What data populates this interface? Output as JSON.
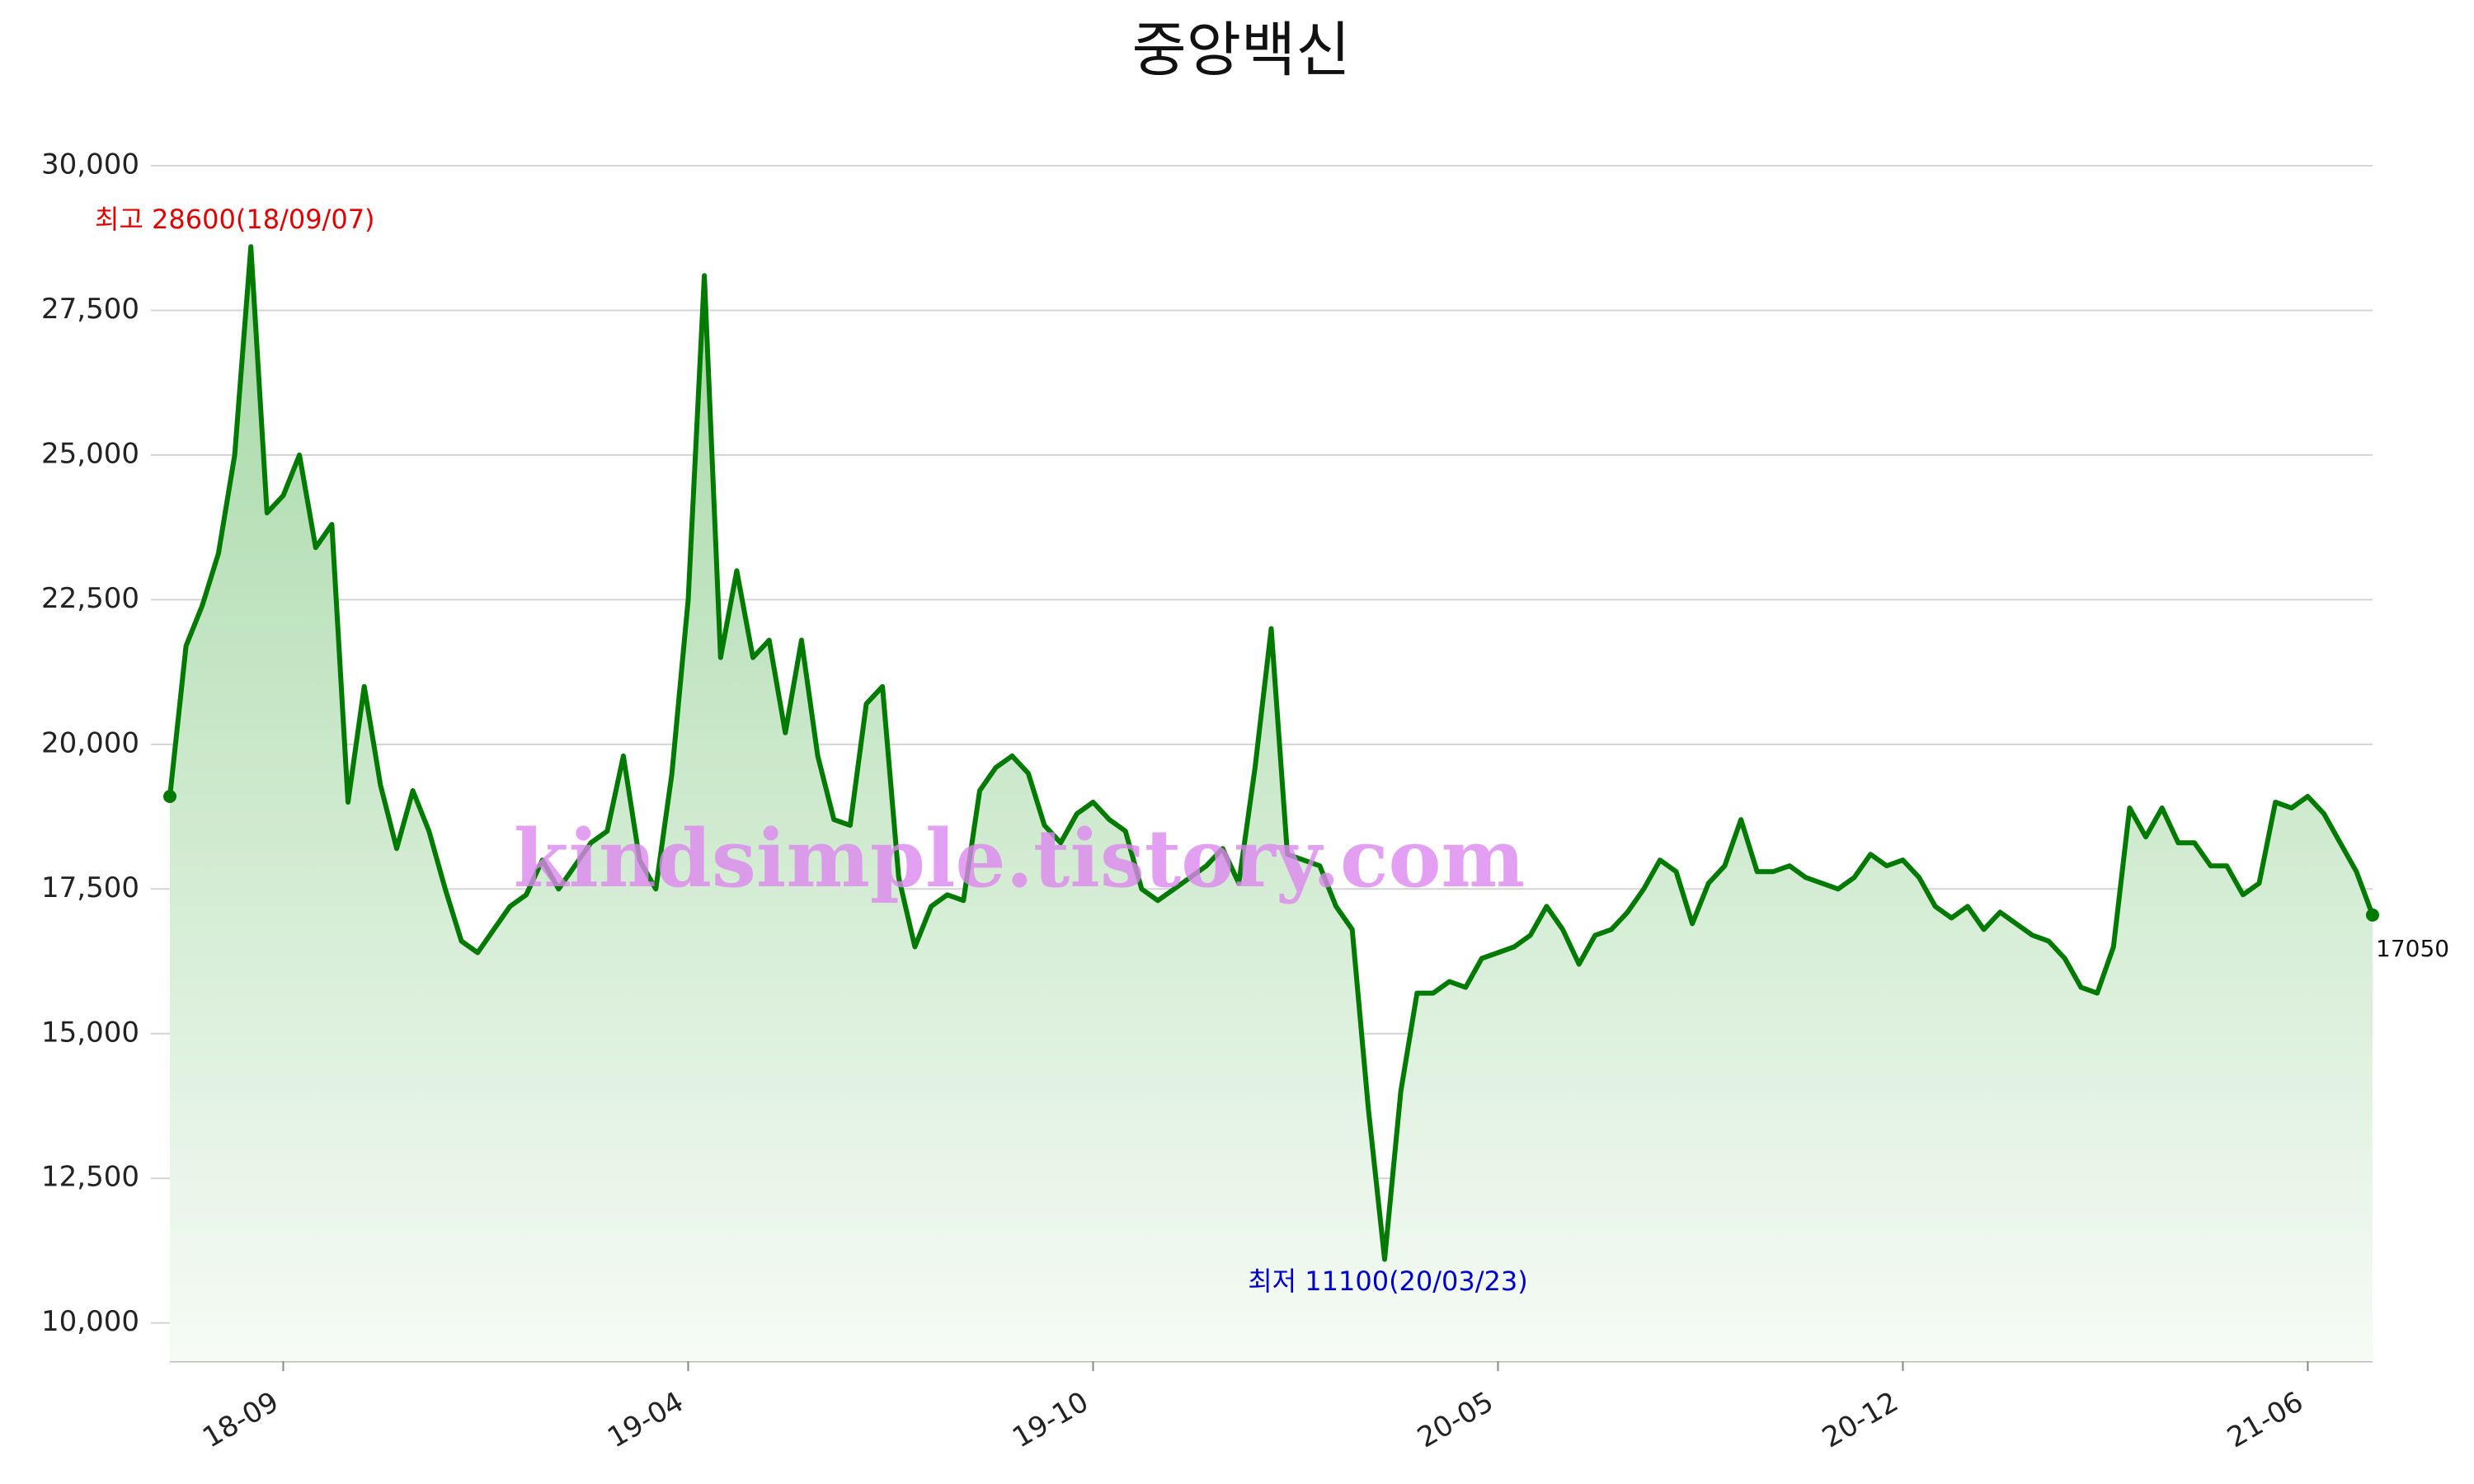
{
  "chart_data": {
    "type": "area-line",
    "title": "중앙백신",
    "watermark": "kindsimple.tistory.com",
    "color": "#007a00",
    "fill_top": "#a6d8a6",
    "fill_bottom": "#f6fbf6",
    "categories": [
      null,
      null,
      null,
      null,
      null,
      null,
      null,
      "18-09",
      null,
      null,
      null,
      null,
      null,
      null,
      null,
      null,
      null,
      null,
      null,
      null,
      null,
      null,
      null,
      null,
      null,
      null,
      null,
      null,
      null,
      null,
      null,
      null,
      "19-04",
      null,
      null,
      null,
      null,
      null,
      null,
      null,
      null,
      null,
      null,
      null,
      null,
      null,
      null,
      null,
      null,
      null,
      null,
      null,
      null,
      null,
      null,
      null,
      null,
      "19-10",
      null,
      null,
      null,
      null,
      null,
      null,
      null,
      null,
      null,
      null,
      null,
      null,
      null,
      null,
      null,
      null,
      null,
      null,
      null,
      null,
      null,
      null,
      null,
      null,
      "20-05",
      null,
      null,
      null,
      null,
      null,
      null,
      null,
      null,
      null,
      null,
      null,
      null,
      null,
      null,
      null,
      null,
      null,
      null,
      null,
      null,
      null,
      null,
      null,
      null,
      "20-12",
      null,
      null,
      null,
      null,
      null,
      null,
      null,
      null,
      null,
      null,
      null,
      null,
      null,
      null,
      null,
      null,
      null,
      null,
      null,
      null,
      null,
      null,
      null,
      null,
      "21-06",
      null,
      null,
      null,
      null
    ],
    "values": [
      19100,
      21700,
      22400,
      23300,
      25000,
      28600,
      24000,
      24300,
      25000,
      23400,
      23800,
      19000,
      21000,
      19300,
      18200,
      19200,
      18500,
      17500,
      16600,
      16400,
      16800,
      17200,
      17400,
      18000,
      17500,
      17900,
      18300,
      18500,
      19800,
      18000,
      17500,
      19500,
      22500,
      28100,
      21500,
      23000,
      21500,
      21800,
      20200,
      21800,
      19800,
      18700,
      18600,
      20700,
      21000,
      17700,
      16500,
      17200,
      17400,
      17300,
      19200,
      19600,
      19800,
      19500,
      18600,
      18300,
      18800,
      19000,
      18700,
      18500,
      17500,
      17300,
      17500,
      17700,
      17900,
      18200,
      17600,
      19600,
      22000,
      18100,
      18000,
      17900,
      17200,
      16800,
      13700,
      11100,
      14000,
      15700,
      15700,
      15900,
      15800,
      16300,
      16400,
      16500,
      16700,
      17200,
      16800,
      16200,
      16700,
      16800,
      17100,
      17500,
      18000,
      17800,
      16900,
      17600,
      17900,
      18700,
      17800,
      17800,
      17900,
      17700,
      17600,
      17500,
      17700,
      18100,
      17900,
      18000,
      17700,
      17200,
      17000,
      17200,
      16800,
      17100,
      16900,
      16700,
      16600,
      16300,
      15800,
      15700,
      16500,
      18900,
      18400,
      18900,
      18300,
      18300,
      17900,
      17900,
      17400,
      17600,
      19000,
      18900,
      19100,
      18800,
      18300,
      17800,
      17050
    ],
    "ylim": [
      9340,
      30000
    ],
    "yticks": [
      {
        "value": 10000,
        "label": "10,000"
      },
      {
        "value": 12500,
        "label": "12,500"
      },
      {
        "value": 15000,
        "label": "15,000"
      },
      {
        "value": 17500,
        "label": "17,500"
      },
      {
        "value": 20000,
        "label": "20,000"
      },
      {
        "value": 22500,
        "label": "22,500"
      },
      {
        "value": 25000,
        "label": "25,000"
      },
      {
        "value": 27500,
        "label": "27,500"
      },
      {
        "value": 30000,
        "label": "30,000"
      }
    ],
    "grid": true,
    "annotations": {
      "high": {
        "text": "최고 28600(18/09/07)",
        "color": "#e00000"
      },
      "low": {
        "text": "최저 11100(20/03/23)",
        "color": "#0000cc"
      },
      "last": {
        "text": "17050",
        "color": "#111111"
      }
    }
  }
}
